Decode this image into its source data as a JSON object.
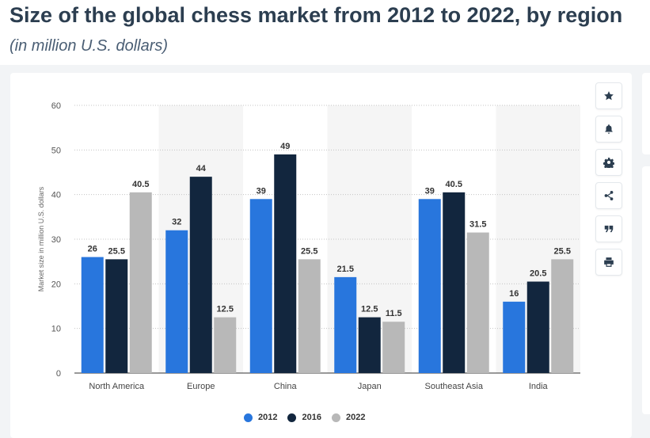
{
  "header": {
    "title": "Size of the global chess market from 2012 to 2022, by region",
    "subtitle": "(in million U.S. dollars)"
  },
  "toolbar": {
    "icons": [
      "star-icon",
      "bell-icon",
      "gear-icon",
      "share-icon",
      "quote-icon",
      "print-icon"
    ]
  },
  "chart_data": {
    "type": "bar",
    "title": "",
    "xlabel": "",
    "ylabel": "Market size in million U.S. dollars",
    "categories": [
      "North America",
      "Europe",
      "China",
      "Japan",
      "Southeast Asia",
      "India"
    ],
    "series": [
      {
        "name": "2012",
        "color": "#2876dd",
        "values": [
          26,
          32,
          39,
          21.5,
          39,
          16
        ]
      },
      {
        "name": "2016",
        "color": "#12263e",
        "values": [
          25.5,
          44,
          49,
          12.5,
          40.5,
          20.5
        ]
      },
      {
        "name": "2022",
        "color": "#b8b8b8",
        "values": [
          40.5,
          12.5,
          25.5,
          11.5,
          31.5,
          25.5
        ]
      }
    ],
    "ylim": [
      0,
      60
    ],
    "yticks": [
      0,
      10,
      20,
      30,
      40,
      50,
      60
    ],
    "grid": true,
    "legend": "bottom-center",
    "data_labels": true
  }
}
